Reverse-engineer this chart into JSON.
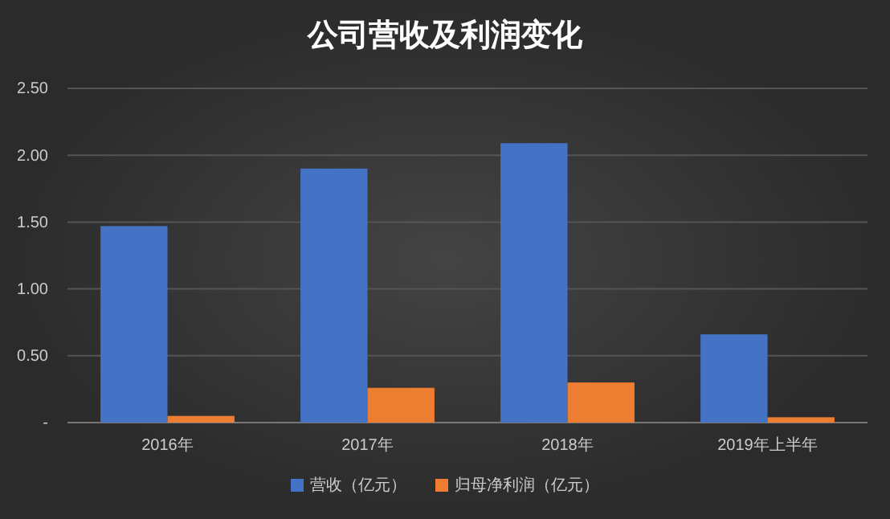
{
  "chart_data": {
    "type": "bar",
    "title": "公司营收及利润变化",
    "categories": [
      "2016年",
      "2017年",
      "2018年",
      "2019年上半年"
    ],
    "series": [
      {
        "name": "营收（亿元）",
        "color": "#4472c4",
        "values": [
          1.47,
          1.9,
          2.09,
          0.66
        ]
      },
      {
        "name": "归母净利润（亿元）",
        "color": "#ed7d31",
        "values": [
          0.05,
          0.26,
          0.3,
          0.04
        ]
      }
    ],
    "ylim": [
      0,
      2.5
    ],
    "yticks": [
      {
        "value": 0,
        "label": "-"
      },
      {
        "value": 0.5,
        "label": "0.50"
      },
      {
        "value": 1,
        "label": "1.00"
      },
      {
        "value": 1.5,
        "label": "1.50"
      },
      {
        "value": 2,
        "label": "2.00"
      },
      {
        "value": 2.5,
        "label": "2.50"
      }
    ],
    "grid": "y",
    "legend": "bottom"
  }
}
